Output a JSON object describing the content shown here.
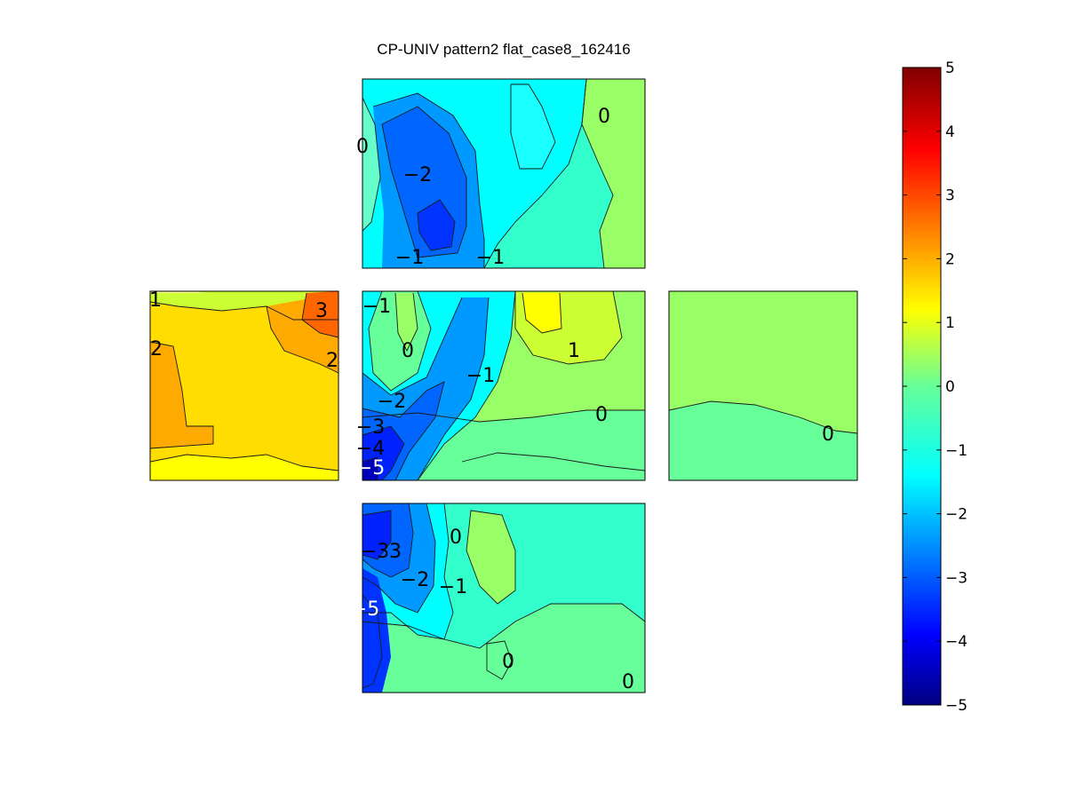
{
  "chart_data": {
    "type": "heatmap",
    "title": "CP-UNIV pattern2 flat_case8_162416",
    "colormap": "jet",
    "colorbar": {
      "range": [
        -5,
        5
      ],
      "ticks": [
        "5",
        "4",
        "3",
        "2",
        "1",
        "0",
        "−1",
        "−2",
        "−3",
        "−4",
        "−5"
      ]
    },
    "panels": [
      {
        "name": "top",
        "contour_labels": [
          "0",
          "−2",
          "0",
          "−1",
          "−1"
        ]
      },
      {
        "name": "left",
        "contour_labels": [
          "1",
          "3",
          "2",
          "2"
        ]
      },
      {
        "name": "center",
        "contour_labels": [
          "−1",
          "0",
          "1",
          "−1",
          "−2",
          "0",
          "−3",
          "−4",
          "−5"
        ]
      },
      {
        "name": "right",
        "contour_labels": [
          "0"
        ]
      },
      {
        "name": "bottom",
        "contour_labels": [
          "−3",
          "3",
          "0",
          "−2",
          "−1",
          "−5",
          "0",
          "0"
        ]
      }
    ]
  }
}
